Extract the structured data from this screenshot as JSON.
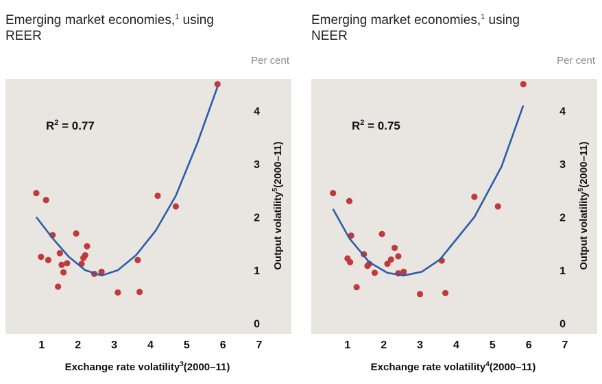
{
  "colors": {
    "plot_background": "#e9e6e1",
    "points": "#c0393b",
    "fit_line": "#2a5ca8",
    "unit_text": "#8a8a8a"
  },
  "chart_data": [
    {
      "type": "scatter",
      "title": "Emerging market economies,",
      "title_footnote": "1",
      "title_suffix": " using",
      "title_line2": "REER",
      "unit": "Per cent",
      "xlabel": "Exchange rate volatility",
      "xlabel_footnote": "3",
      "xlabel_suffix": "(2000–11)",
      "ylabel": "Output volatility",
      "ylabel_footnote": "5",
      "ylabel_suffix": "(2000–11)",
      "annotation": "R",
      "annotation_exp": "2",
      "annotation_value": " = 0.77",
      "xlim": [
        0,
        7
      ],
      "ylim": [
        -0.2,
        4.6
      ],
      "x_ticks": [
        "1",
        "2",
        "3",
        "4",
        "5",
        "6",
        "7"
      ],
      "y_ticks": [
        "0",
        "1",
        "2",
        "3",
        "4"
      ],
      "grid": false,
      "points": {
        "x": [
          0.85,
          0.98,
          1.12,
          1.18,
          1.3,
          1.45,
          1.5,
          1.55,
          1.6,
          1.7,
          1.95,
          2.1,
          2.15,
          2.2,
          2.25,
          2.45,
          2.65,
          3.1,
          3.65,
          3.7,
          4.2,
          4.7,
          5.85
        ],
        "y": [
          2.45,
          1.25,
          2.32,
          1.19,
          1.66,
          0.69,
          1.32,
          1.1,
          0.96,
          1.13,
          1.69,
          1.12,
          1.23,
          1.28,
          1.45,
          0.93,
          0.97,
          0.58,
          1.19,
          0.59,
          2.4,
          2.2,
          4.5
        ]
      },
      "fit": {
        "x": [
          0.85,
          1.3,
          1.75,
          2.2,
          2.65,
          3.1,
          3.6,
          4.15,
          4.7,
          5.3,
          5.85
        ],
        "y": [
          2.0,
          1.6,
          1.25,
          1.0,
          0.9,
          1.0,
          1.28,
          1.75,
          2.4,
          3.4,
          4.45
        ]
      }
    },
    {
      "type": "scatter",
      "title": "Emerging market economies,",
      "title_footnote": "1",
      "title_suffix": " using",
      "title_line2": "NEER",
      "unit": "Per cent",
      "xlabel": "Exchange rate volatility",
      "xlabel_footnote": "4",
      "xlabel_suffix": "(2000–11)",
      "ylabel": "Output volatility",
      "ylabel_footnote": "5",
      "ylabel_suffix": "(2000–11)",
      "annotation": "R",
      "annotation_exp": "2",
      "annotation_value": " = 0.75",
      "xlim": [
        0,
        7
      ],
      "ylim": [
        -0.2,
        4.6
      ],
      "x_ticks": [
        "1",
        "2",
        "3",
        "4",
        "5",
        "6",
        "7"
      ],
      "y_ticks": [
        "0",
        "1",
        "2",
        "3",
        "4"
      ],
      "grid": false,
      "points": {
        "x": [
          0.6,
          1.0,
          1.05,
          1.07,
          1.1,
          1.25,
          1.45,
          1.55,
          1.6,
          1.75,
          1.95,
          2.1,
          2.2,
          2.3,
          2.4,
          2.4,
          2.55,
          3.0,
          3.6,
          3.7,
          4.5,
          5.15,
          5.85
        ],
        "y": [
          2.45,
          1.22,
          2.3,
          1.15,
          1.65,
          0.68,
          1.3,
          1.08,
          1.12,
          0.95,
          1.68,
          1.12,
          1.2,
          1.42,
          1.26,
          0.94,
          0.97,
          0.55,
          1.18,
          0.57,
          2.38,
          2.2,
          4.5
        ]
      },
      "fit": {
        "x": [
          0.6,
          1.05,
          1.6,
          2.1,
          2.55,
          3.05,
          3.55,
          4.5,
          5.25,
          5.85
        ],
        "y": [
          2.15,
          1.6,
          1.15,
          0.95,
          0.9,
          0.97,
          1.2,
          2.0,
          2.95,
          4.1
        ]
      }
    }
  ]
}
